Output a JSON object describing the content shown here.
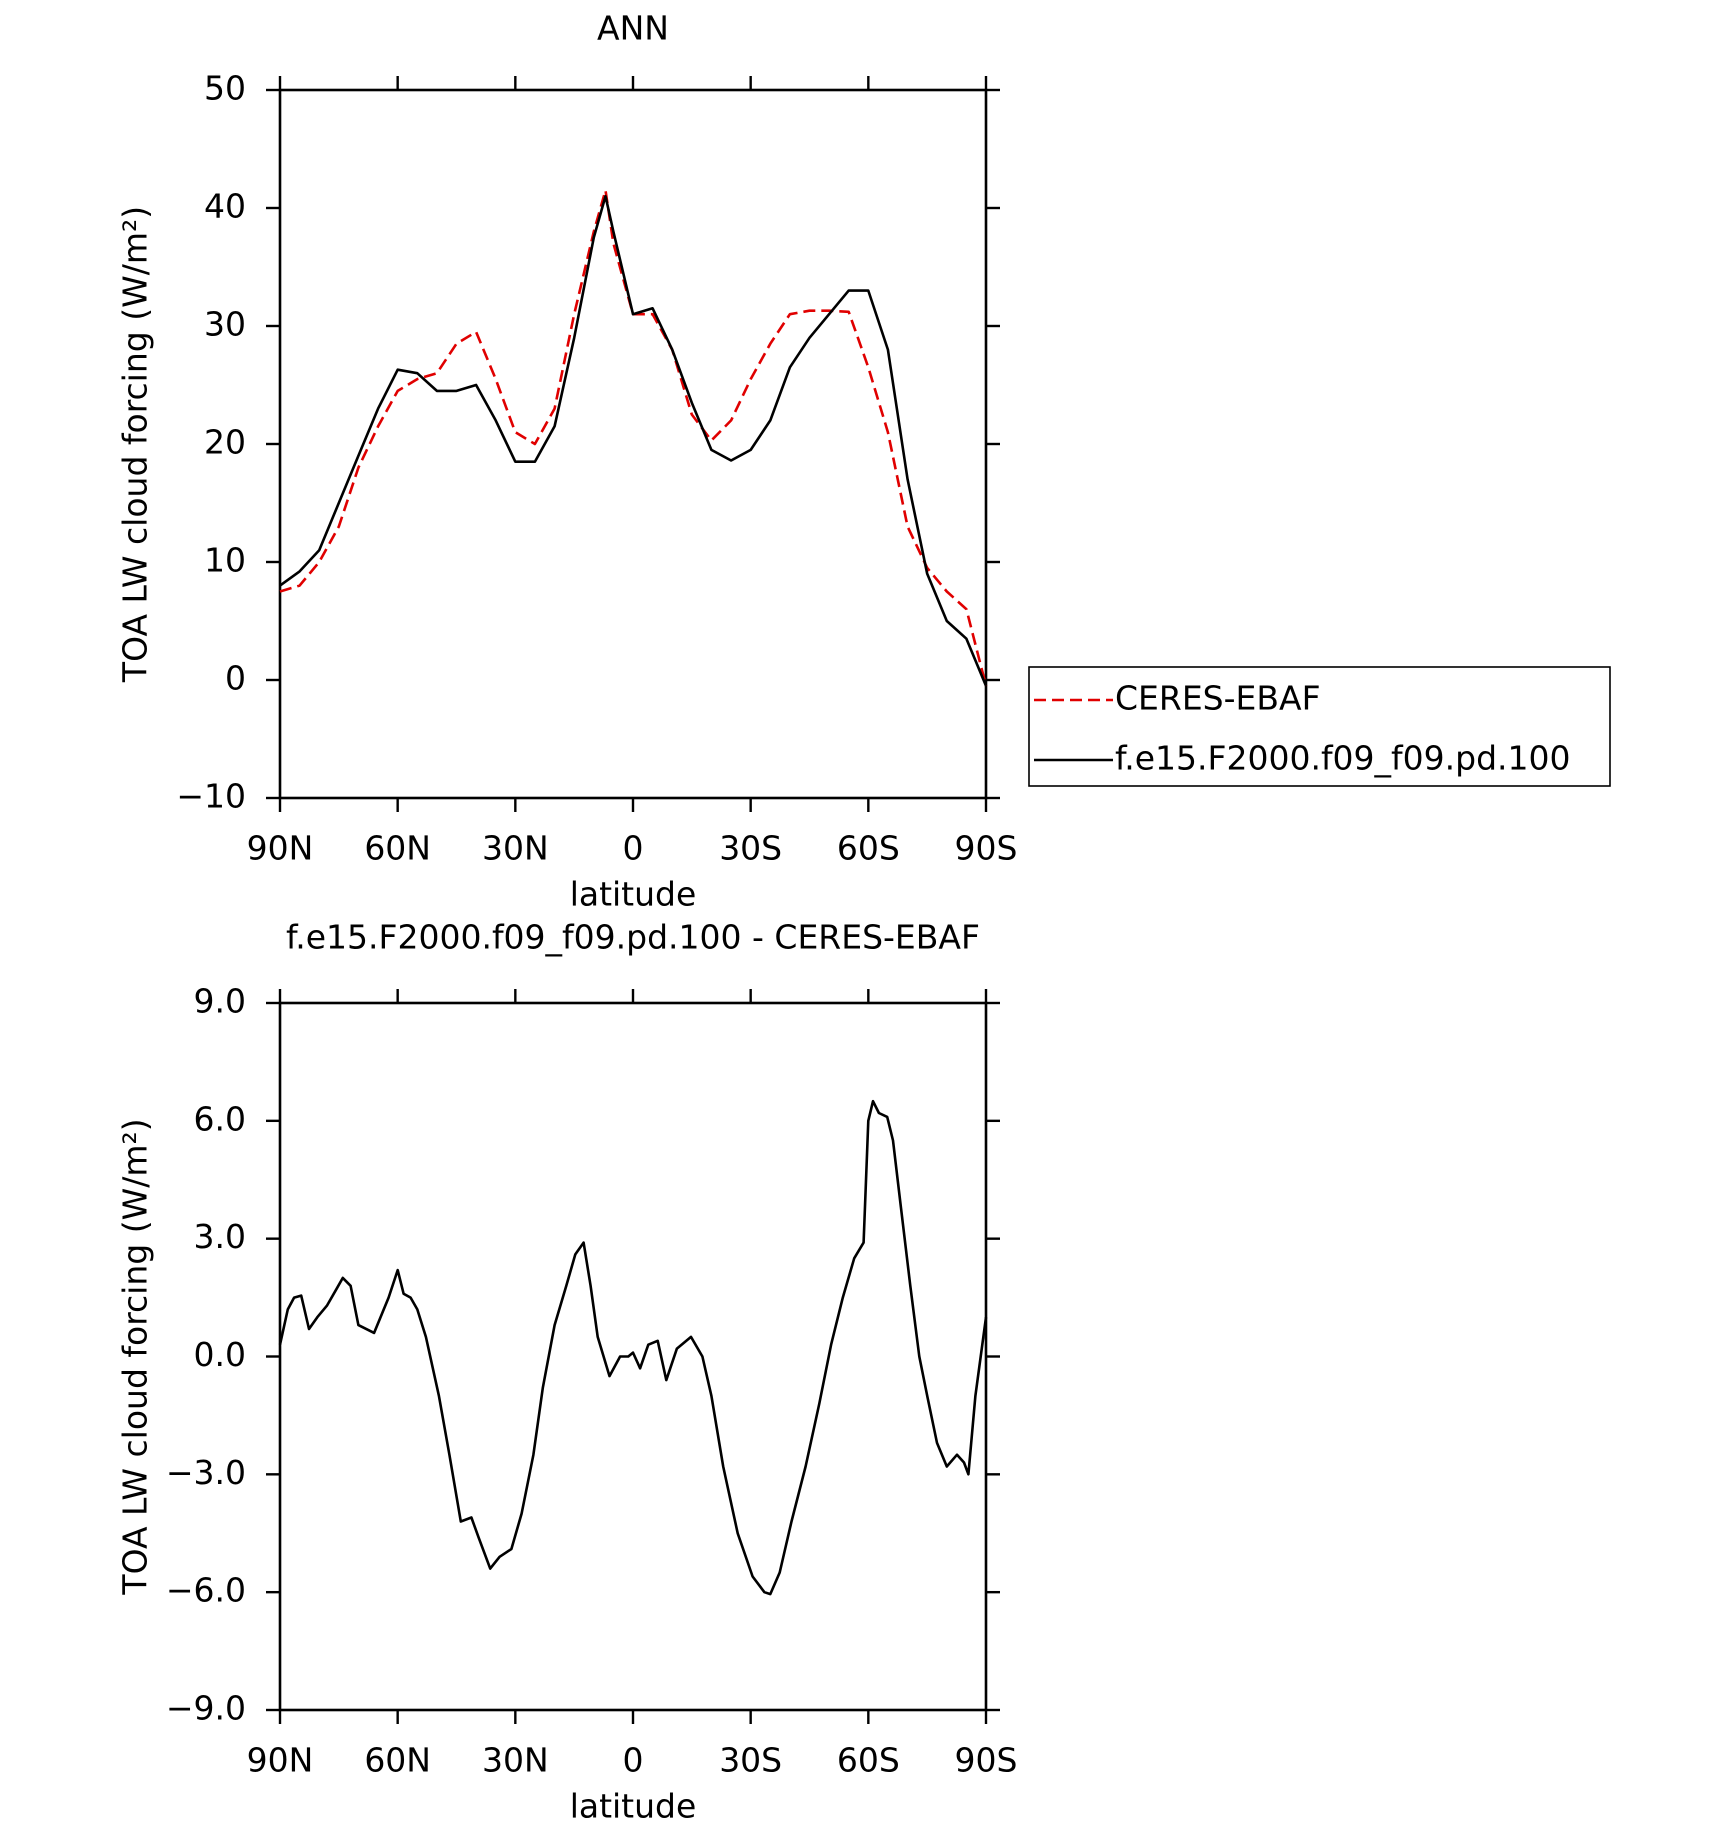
{
  "chart_data": [
    {
      "type": "line",
      "title": "ANN",
      "xlabel": "latitude",
      "ylabel": "TOA LW cloud forcing (W/m²)",
      "x": [
        90,
        85,
        80,
        75,
        70,
        65,
        60,
        55,
        50,
        45,
        40,
        35,
        30,
        25,
        20,
        15,
        10,
        7,
        5,
        0,
        -5,
        -10,
        -15,
        -20,
        -25,
        -30,
        -35,
        -40,
        -45,
        -50,
        -55,
        -60,
        -65,
        -70,
        -75,
        -80,
        -85,
        -90
      ],
      "xlim": [
        90,
        -90
      ],
      "xticks": [
        {
          "value": 90,
          "label": "90N"
        },
        {
          "value": 60,
          "label": "60N"
        },
        {
          "value": 30,
          "label": "30N"
        },
        0,
        {
          "value": -30,
          "label": "30S"
        },
        {
          "value": -60,
          "label": "60S"
        },
        {
          "value": -90,
          "label": "90S"
        }
      ],
      "ylim": [
        -10,
        50
      ],
      "yticks": [
        {
          "value": -10,
          "label": "−10"
        },
        0,
        10,
        20,
        30,
        40,
        50
      ],
      "legend": "right",
      "series": [
        {
          "name": "CERES-EBAF",
          "color": "#e00000",
          "dashed": true,
          "values": [
            7.5,
            8,
            10,
            13,
            18,
            21.5,
            24.5,
            25.5,
            26,
            28.5,
            29.5,
            25.5,
            21,
            20,
            23,
            31,
            38,
            41.5,
            37,
            31,
            31,
            28,
            22.5,
            20.3,
            22,
            25.5,
            28.5,
            31,
            31.3,
            31.3,
            31.2,
            26.5,
            21,
            13,
            9.5,
            7.5,
            6,
            -0.5
          ]
        },
        {
          "name": "f.e15.F2000.f09_f09.pd.100",
          "color": "#000000",
          "dashed": false,
          "values": [
            8,
            9.2,
            11,
            15,
            19,
            23,
            26.3,
            26,
            24.5,
            24.5,
            25,
            22,
            18.5,
            18.5,
            21.5,
            29,
            37.5,
            41,
            38,
            31,
            31.5,
            28,
            23.5,
            19.5,
            18.6,
            19.5,
            22,
            26.5,
            29,
            31,
            33,
            33,
            28,
            17,
            9,
            5,
            3.5,
            -0.5
          ]
        }
      ]
    },
    {
      "type": "line",
      "title": "f.e15.F2000.f09_f09.pd.100 - CERES-EBAF",
      "xlabel": "latitude",
      "ylabel": "TOA LW cloud forcing (W/m²)",
      "x": [
        90,
        88,
        86.4,
        84.6,
        82.6,
        80.5,
        78,
        75.7,
        74,
        72,
        70,
        66,
        62.3,
        60,
        58.5,
        56.7,
        55,
        52.8,
        49.5,
        46.8,
        43.9,
        41.2,
        39.4,
        36.4,
        34,
        31,
        28.4,
        25.4,
        23,
        20,
        17,
        14.7,
        12.6,
        10.8,
        9,
        6,
        3.3,
        1.2,
        0,
        -1.8,
        -3.9,
        -6.3,
        -8.5,
        -11.2,
        -14.8,
        -17.7,
        -20,
        -23,
        -26.7,
        -30.5,
        -33.5,
        -35,
        -37.4,
        -40.4,
        -44,
        -47.5,
        -50.5,
        -53.5,
        -56.4,
        -58.8,
        -60,
        -61.2,
        -62.7,
        -64.8,
        -66.3,
        -68.3,
        -70.7,
        -73,
        -75,
        -77.5,
        -80,
        -82.6,
        -84.4,
        -85.5,
        -87.3,
        -90
      ],
      "values": [
        0.3,
        1.2,
        1.5,
        1.55,
        0.7,
        1.0,
        1.3,
        1.7,
        2.0,
        1.8,
        0.8,
        0.6,
        1.5,
        2.2,
        1.6,
        1.5,
        1.2,
        0.5,
        -1.0,
        -2.5,
        -4.2,
        -4.1,
        -4.6,
        -5.4,
        -5.1,
        -4.9,
        -4.0,
        -2.5,
        -0.8,
        0.8,
        1.8,
        2.6,
        2.9,
        1.8,
        0.5,
        -0.5,
        0,
        0,
        0.1,
        -0.3,
        0.3,
        0.4,
        -0.6,
        0.2,
        0.5,
        0,
        -1.0,
        -2.8,
        -4.5,
        -5.6,
        -6.0,
        -6.05,
        -5.5,
        -4.2,
        -2.8,
        -1.2,
        0.3,
        1.5,
        2.5,
        2.9,
        6.0,
        6.5,
        6.2,
        6.1,
        5.5,
        3.8,
        1.8,
        0,
        -1.0,
        -2.2,
        -2.8,
        -2.5,
        -2.7,
        -3.0,
        -1,
        1.0
      ],
      "color": "#000000",
      "xlim": [
        90,
        -90
      ],
      "xticks": [
        {
          "value": 90,
          "label": "90N"
        },
        {
          "value": 60,
          "label": "60N"
        },
        {
          "value": 30,
          "label": "30N"
        },
        0,
        {
          "value": -30,
          "label": "30S"
        },
        {
          "value": -60,
          "label": "60S"
        },
        {
          "value": -90,
          "label": "90S"
        }
      ],
      "ylim": [
        -9,
        9
      ],
      "yticks": [
        {
          "value": -9,
          "label": "−9.0"
        },
        {
          "value": -6,
          "label": "−6.0"
        },
        {
          "value": -3,
          "label": "−3.0"
        },
        {
          "value": 0,
          "label": "0.0"
        },
        {
          "value": 3,
          "label": "3.0"
        },
        {
          "value": 6,
          "label": "6.0"
        },
        {
          "value": 9,
          "label": "9.0"
        }
      ]
    }
  ]
}
